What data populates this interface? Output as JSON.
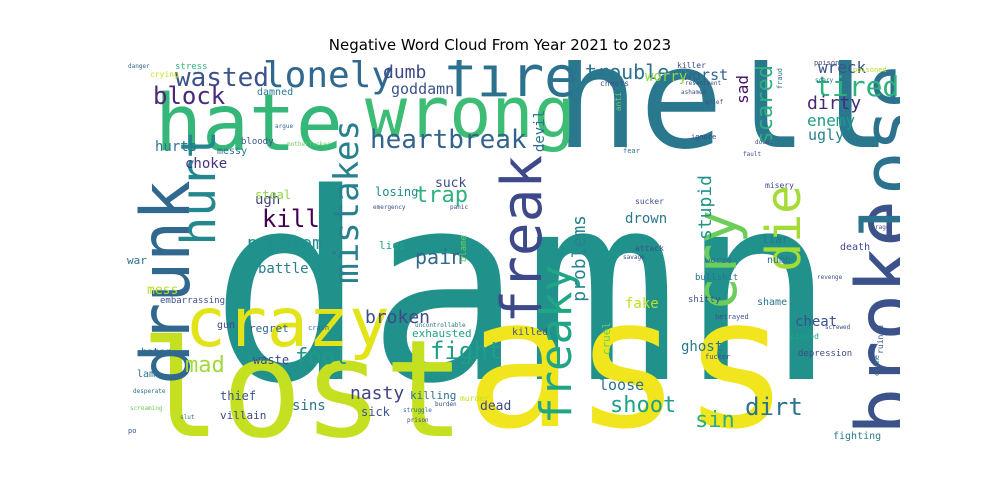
{
  "title": "Negative Word Cloud From Year 2021 to 2023",
  "palette": {
    "yellow": "#f1e51d",
    "lime": "#c5e021",
    "lightgreen": "#6ccd5a",
    "green": "#35b779",
    "teal": "#21918c",
    "tealblue": "#2c728e",
    "blue": "#3b528b",
    "indigo": "#472d7b",
    "purple": "#440154",
    "dark": "#482878"
  },
  "words": [
    {
      "text": "damn",
      "color": "#21918c"
    },
    {
      "text": "ass",
      "color": "#f1e51d"
    },
    {
      "text": "hell",
      "color": "#2a788e"
    },
    {
      "text": "lost",
      "color": "#c5e021"
    },
    {
      "text": "hate",
      "color": "#35b779"
    },
    {
      "text": "wrong",
      "color": "#3dbc74"
    },
    {
      "text": "fire",
      "color": "#2c728e"
    },
    {
      "text": "lonely",
      "color": "#31688e"
    },
    {
      "text": "broke",
      "color": "#3b528b"
    },
    {
      "text": "lose",
      "color": "#2c728e"
    },
    {
      "text": "crazy",
      "color": "#e2e418"
    },
    {
      "text": "drunk",
      "color": "#31688e"
    },
    {
      "text": "hurt",
      "color": "#24878e"
    },
    {
      "text": "freak",
      "color": "#3e4989"
    },
    {
      "text": "mistakes",
      "color": "#27808e"
    },
    {
      "text": "heartbreak",
      "color": "#33638d"
    },
    {
      "text": "cry",
      "color": "#6ccd5a"
    },
    {
      "text": "die",
      "color": "#a5db36"
    },
    {
      "text": "freaky",
      "color": "#21a685"
    },
    {
      "text": "wasted",
      "color": "#3b528b"
    },
    {
      "text": "block",
      "color": "#482878"
    },
    {
      "text": "tired",
      "color": "#2db27d"
    },
    {
      "text": "scared",
      "color": "#2ab07f"
    },
    {
      "text": "trouble",
      "color": "#2c728e"
    },
    {
      "text": "dumb",
      "color": "#3e4989"
    },
    {
      "text": "kill",
      "color": "#440154"
    },
    {
      "text": "fight",
      "color": "#1f9e89"
    },
    {
      "text": "fool",
      "color": "#1f9a8a"
    },
    {
      "text": "mad",
      "color": "#a0da39"
    },
    {
      "text": "shoot",
      "color": "#1fa188"
    },
    {
      "text": "dirt",
      "color": "#2c728e"
    },
    {
      "text": "sin",
      "color": "#2ab07f"
    },
    {
      "text": "pain",
      "color": "#31688e"
    },
    {
      "text": "trap",
      "color": "#2db27d"
    },
    {
      "text": "problem",
      "color": "#218f8d"
    },
    {
      "text": "broken",
      "color": "#3e4989"
    },
    {
      "text": "stupid",
      "color": "#20928c"
    },
    {
      "text": "problems",
      "color": "#25848e"
    },
    {
      "text": "nasty",
      "color": "#414487"
    },
    {
      "text": "dirty",
      "color": "#482878"
    },
    {
      "text": "enemy",
      "color": "#1f9a8a"
    },
    {
      "text": "sad",
      "color": "#471063"
    },
    {
      "text": "worst",
      "color": "#33638d"
    },
    {
      "text": "worry",
      "color": "#8fd744"
    },
    {
      "text": "wreck",
      "color": "#3b528b"
    },
    {
      "text": "ugly",
      "color": "#26828e"
    },
    {
      "text": "devil",
      "color": "#2d718e"
    },
    {
      "text": "goddamn",
      "color": "#3b528b"
    },
    {
      "text": "hurts",
      "color": "#2a788e"
    },
    {
      "text": "choke",
      "color": "#46337e"
    },
    {
      "text": "messy",
      "color": "#2c728e"
    },
    {
      "text": "bloody",
      "color": "#38588c"
    },
    {
      "text": "damned",
      "color": "#2a788e"
    },
    {
      "text": "stress",
      "color": "#35b779"
    },
    {
      "text": "crying",
      "color": "#c2df23"
    },
    {
      "text": "ugh",
      "color": "#433e85"
    },
    {
      "text": "steal",
      "color": "#8fd744"
    },
    {
      "text": "battle",
      "color": "#27808e"
    },
    {
      "text": "war",
      "color": "#2c728e"
    },
    {
      "text": "mess",
      "color": "#b8de29"
    },
    {
      "text": "losing",
      "color": "#228b8d"
    },
    {
      "text": "suck",
      "color": "#3e4989"
    },
    {
      "text": "lies",
      "color": "#20a386"
    },
    {
      "text": "drown",
      "color": "#2a788e"
    },
    {
      "text": "fake",
      "color": "#c2df23"
    },
    {
      "text": "cruel",
      "color": "#6ccd5a"
    },
    {
      "text": "cheat",
      "color": "#3b528b"
    },
    {
      "text": "liar",
      "color": "#2c728e"
    },
    {
      "text": "numb",
      "color": "#2c728e"
    },
    {
      "text": "shame",
      "color": "#2c728e"
    },
    {
      "text": "ghost",
      "color": "#2a788e"
    },
    {
      "text": "loose",
      "color": "#2c728e"
    },
    {
      "text": "killed",
      "color": "#3b528b"
    },
    {
      "text": "blame",
      "color": "#6ccd5a"
    },
    {
      "text": "exhausted",
      "color": "#20a386"
    },
    {
      "text": "regret",
      "color": "#31688e"
    },
    {
      "text": "gun",
      "color": "#3e4989"
    },
    {
      "text": "waste",
      "color": "#3e4989"
    },
    {
      "text": "thief",
      "color": "#3b528b"
    },
    {
      "text": "hater",
      "color": "#31688e"
    },
    {
      "text": "lame",
      "color": "#2c728e"
    },
    {
      "text": "sins",
      "color": "#2a788e"
    },
    {
      "text": "sick",
      "color": "#3b528b"
    },
    {
      "text": "villain",
      "color": "#3e4989"
    },
    {
      "text": "killing",
      "color": "#2c728e"
    },
    {
      "text": "dead",
      "color": "#3e4989"
    },
    {
      "text": "murder",
      "color": "#c2df23"
    },
    {
      "text": "fighting",
      "color": "#2a788e"
    },
    {
      "text": "death",
      "color": "#3e4989"
    },
    {
      "text": "depression",
      "color": "#3e4989"
    },
    {
      "text": "pissed",
      "color": "#20a386"
    },
    {
      "text": "ruined",
      "color": "#3b528b"
    },
    {
      "text": "embarrassing",
      "color": "#3b528b"
    },
    {
      "text": "crash",
      "color": "#2c728e"
    },
    {
      "text": "worse",
      "color": "#2c728e"
    },
    {
      "text": "bullshit",
      "color": "#2c728e"
    },
    {
      "text": "attack",
      "color": "#3b528b"
    },
    {
      "text": "shitty",
      "color": "#3b528b"
    },
    {
      "text": "betrayed",
      "color": "#3b528b"
    },
    {
      "text": "fucker",
      "color": "#3b528b"
    },
    {
      "text": "misery",
      "color": "#3e4989"
    },
    {
      "text": "sucker",
      "color": "#3b528b"
    },
    {
      "text": "cheats",
      "color": "#3b528b"
    },
    {
      "text": "killer",
      "color": "#3e4989"
    },
    {
      "text": "poisoned",
      "color": "#b8de29"
    },
    {
      "text": "fraud",
      "color": "#2c728e"
    },
    {
      "text": "poison",
      "color": "#3e4989"
    },
    {
      "text": "danger",
      "color": "#31688e"
    },
    {
      "text": "anti",
      "color": "#6ccd5a"
    },
    {
      "text": "fear",
      "color": "#2c728e"
    },
    {
      "text": "ignore",
      "color": "#3e4989"
    },
    {
      "text": "panic",
      "color": "#3e4989"
    },
    {
      "text": "emergency",
      "color": "#3b528b"
    },
    {
      "text": "screwed",
      "color": "#3e4989"
    },
    {
      "text": "motherfucker",
      "color": "#6ccd5a"
    },
    {
      "text": "uncontrollable",
      "color": "#2c728e"
    },
    {
      "text": "burden",
      "color": "#3e4989"
    },
    {
      "text": "desperate",
      "color": "#2c728e"
    },
    {
      "text": "screaming",
      "color": "#6ccd5a"
    },
    {
      "text": "slut",
      "color": "#2c728e"
    },
    {
      "text": "po",
      "color": "#3b528b"
    },
    {
      "text": "scary",
      "color": "#2c728e"
    },
    {
      "text": "doubt",
      "color": "#3e4989"
    },
    {
      "text": "ashamed",
      "color": "#3b528b"
    },
    {
      "text": "resentment",
      "color": "#3b528b"
    },
    {
      "text": "grief",
      "color": "#3b528b"
    },
    {
      "text": "savage",
      "color": "#3e4989"
    },
    {
      "text": "fault",
      "color": "#3b528b"
    },
    {
      "text": "revenge",
      "color": "#3b528b"
    },
    {
      "text": "crime",
      "color": "#2c728e"
    },
    {
      "text": "argue",
      "color": "#31688e"
    },
    {
      "text": "rage",
      "color": "#3e4989"
    },
    {
      "text": "struggle",
      "color": "#31688e"
    },
    {
      "text": "prison",
      "color": "#3e4989"
    }
  ]
}
